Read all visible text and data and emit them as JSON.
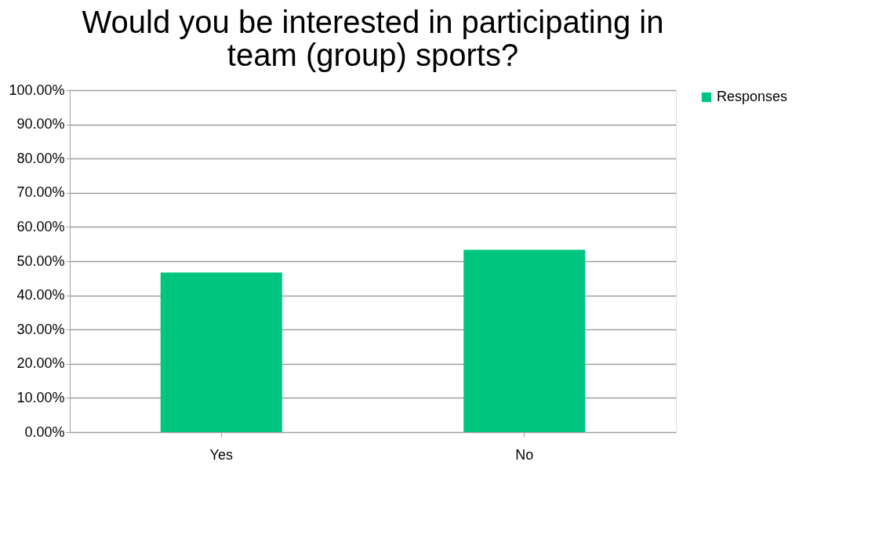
{
  "chart_data": {
    "type": "bar",
    "title": [
      "Would you be interested in participating in",
      "team (group) sports?"
    ],
    "categories": [
      "Yes",
      "No"
    ],
    "series": [
      {
        "name": "Responses",
        "color": "#00c580",
        "values": [
          46.7,
          53.3
        ]
      }
    ],
    "ylim": [
      0,
      100
    ],
    "yticks": [
      {
        "value": 0,
        "label": "0.00%"
      },
      {
        "value": 10,
        "label": "10.00%"
      },
      {
        "value": 20,
        "label": "20.00%"
      },
      {
        "value": 30,
        "label": "30.00%"
      },
      {
        "value": 40,
        "label": "40.00%"
      },
      {
        "value": 50,
        "label": "50.00%"
      },
      {
        "value": 60,
        "label": "60.00%"
      },
      {
        "value": 70,
        "label": "70.00%"
      },
      {
        "value": 80,
        "label": "80.00%"
      },
      {
        "value": 90,
        "label": "90.00%"
      },
      {
        "value": 100,
        "label": "100.00%"
      }
    ],
    "grid": "y",
    "legend": "right"
  }
}
